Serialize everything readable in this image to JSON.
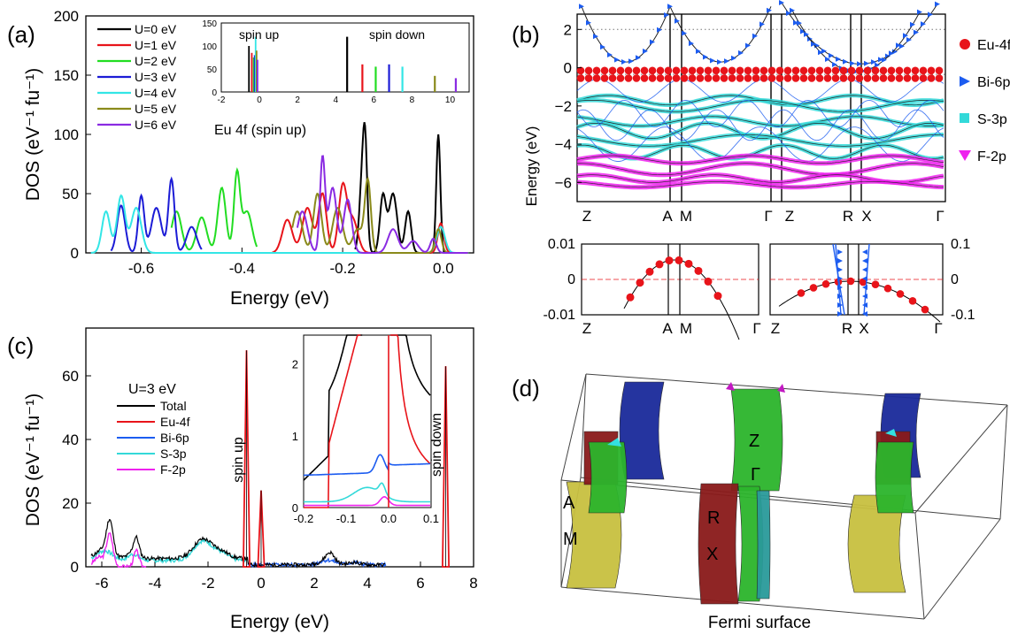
{
  "panel_labels": {
    "a": "(a)",
    "b": "(b)",
    "c": "(c)",
    "d": "(d)"
  },
  "colors": {
    "u0": "#000000",
    "u1": "#e8141a",
    "u2": "#22dd22",
    "u3": "#1c1cd6",
    "u4": "#33e6e6",
    "u5": "#8a8a1a",
    "u6": "#8a2be2",
    "eu": "#e8141a",
    "bi": "#1c5cf0",
    "s": "#33d9d9",
    "f": "#ee22ee"
  },
  "chart_data": [
    {
      "id": "a",
      "type": "line",
      "title": "",
      "xlabel": "Energy (eV)",
      "ylabel": "DOS (eV⁻¹ fu⁻¹)",
      "xlim": [
        -0.71,
        0.06
      ],
      "ylim": [
        0,
        200
      ],
      "xticks": [
        "-0.6",
        "-0.4",
        "-0.2",
        "0.0"
      ],
      "yticks": [
        "0",
        "50",
        "100",
        "150",
        "200"
      ],
      "annotation": "Eu 4f (spin up)",
      "legend": [
        "U=0 eV",
        "U=1 eV",
        "U=2 eV",
        "U=3 eV",
        "U=4 eV",
        "U=5 eV",
        "U=6 eV"
      ],
      "series": [
        {
          "name": "U=0 eV",
          "peaks": [
            [
              -0.16,
              70,
              0.006
            ],
            [
              -0.155,
              55,
              0.004
            ],
            [
              -0.12,
              48,
              0.006
            ],
            [
              -0.1,
              50,
              0.008
            ],
            [
              -0.07,
              35,
              0.006
            ],
            [
              -0.01,
              100,
              0.004
            ]
          ],
          "range": [
            -0.175,
            0.05
          ]
        },
        {
          "name": "U=1 eV",
          "peaks": [
            [
              -0.31,
              28,
              0.01
            ],
            [
              -0.27,
              38,
              0.01
            ],
            [
              -0.24,
              50,
              0.008
            ],
            [
              -0.2,
              55,
              0.008
            ],
            [
              -0.18,
              28,
              0.01
            ],
            [
              -0.005,
              25,
              0.006
            ]
          ],
          "range": [
            -0.34,
            0.05
          ]
        },
        {
          "name": "U=2 eV",
          "peaks": [
            [
              -0.53,
              35,
              0.01
            ],
            [
              -0.48,
              30,
              0.01
            ],
            [
              -0.44,
              55,
              0.008
            ],
            [
              -0.41,
              65,
              0.006
            ],
            [
              -0.39,
              35,
              0.01
            ]
          ],
          "range": [
            -0.54,
            -0.37
          ]
        },
        {
          "name": "U=3 eV",
          "peaks": [
            [
              -0.64,
              40,
              0.008
            ],
            [
              -0.6,
              48,
              0.006
            ],
            [
              -0.57,
              38,
              0.01
            ],
            [
              -0.54,
              62,
              0.006
            ],
            [
              -0.5,
              22,
              0.01
            ]
          ],
          "range": [
            -0.66,
            -0.48
          ]
        },
        {
          "name": "U=4 eV",
          "peaks": [
            [
              -0.67,
              35,
              0.008
            ],
            [
              -0.64,
              48,
              0.008
            ],
            [
              -0.61,
              38,
              0.01
            ],
            [
              -0.005,
              22,
              0.008
            ]
          ],
          "range": [
            -0.7,
            0.05
          ]
        },
        {
          "name": "U=5 eV",
          "peaks": [
            [
              -0.29,
              35,
              0.01
            ],
            [
              -0.25,
              50,
              0.008
            ],
            [
              -0.21,
              38,
              0.01
            ],
            [
              -0.17,
              20,
              0.01
            ],
            [
              -0.15,
              60,
              0.006
            ],
            [
              -0.01,
              20,
              0.006
            ]
          ],
          "range": [
            -0.3,
            0.05
          ]
        },
        {
          "name": "U=6 eV",
          "peaks": [
            [
              -0.28,
              35,
              0.01
            ],
            [
              -0.24,
              80,
              0.005
            ],
            [
              -0.22,
              55,
              0.008
            ],
            [
              -0.19,
              45,
              0.008
            ],
            [
              -0.1,
              20,
              0.01
            ],
            [
              -0.06,
              10,
              0.01
            ],
            [
              -0.02,
              12,
              0.006
            ]
          ],
          "range": [
            -0.29,
            0.05
          ]
        }
      ],
      "inset": {
        "xlim": [
          -2,
          11
        ],
        "ylim": [
          0,
          150
        ],
        "xticks": [
          "-2",
          "0",
          "2",
          "4",
          "6",
          "8",
          "10"
        ],
        "yticks": [
          "0",
          "50",
          "100",
          "150"
        ],
        "labels": [
          "spin up",
          "spin down"
        ],
        "spin_up_x": [
          -0.55,
          -0.4,
          -0.3,
          -0.25,
          -0.2,
          -0.15,
          -0.1
        ],
        "spin_down_x": [
          4.6,
          5.4,
          6.1,
          6.8,
          7.5,
          9.2,
          10.3
        ],
        "spin_up_h": [
          100,
          85,
          75,
          80,
          120,
          90,
          70
        ],
        "spin_down_h": [
          120,
          60,
          55,
          60,
          55,
          35,
          30
        ]
      }
    },
    {
      "id": "b",
      "type": "scatter",
      "title": "",
      "ylabel": "Energy (eV)",
      "ylim": [
        -7,
        2.8
      ],
      "yticks": [
        "2",
        "0",
        "−2",
        "−4",
        "−6"
      ],
      "kpoints_top": [
        "Z",
        "A",
        "M",
        "Γ",
        "Z",
        "R",
        "X",
        "Γ"
      ],
      "legend": [
        "Eu-4f",
        "Bi-6p",
        "S-3p",
        "F-2p"
      ],
      "zoom_left": {
        "ylim": [
          -0.01,
          0.01
        ],
        "yticks": [
          "0.01",
          "0",
          "-0.01"
        ],
        "kpoints": [
          "Z",
          "A",
          "M",
          "Γ"
        ]
      },
      "zoom_right": {
        "ylim": [
          -0.1,
          0.1
        ],
        "yticks": [
          "0.1",
          "0",
          "-0.1"
        ],
        "kpoints": [
          "Z",
          "R",
          "X",
          "Γ"
        ]
      }
    },
    {
      "id": "c",
      "type": "line",
      "title": "",
      "xlabel": "Energy (eV)",
      "ylabel": "DOS (eV⁻¹ fu⁻¹)",
      "xlim": [
        -6.6,
        8
      ],
      "ylim": [
        0,
        75
      ],
      "xticks": [
        "-6",
        "-4",
        "-2",
        "0",
        "2",
        "4",
        "6",
        "8"
      ],
      "yticks": [
        "0",
        "20",
        "40",
        "60"
      ],
      "annotation": "U=3 eV",
      "spin_labels": [
        "spin up",
        "spin down"
      ],
      "legend": [
        "Total",
        "Eu-4f",
        "Bi-6p",
        "S-3p",
        "F-2p"
      ],
      "inset": {
        "xlim": [
          -0.2,
          0.1
        ],
        "ylim": [
          0,
          2.4
        ],
        "xticks": [
          "-0.2",
          "-0.1",
          "0.0",
          "0.1"
        ],
        "yticks": [
          "0",
          "1",
          "2"
        ]
      }
    },
    {
      "id": "d",
      "type": "other",
      "caption": "Fermi surface",
      "labels": [
        "Z",
        "Γ",
        "A",
        "R",
        "X",
        "M"
      ]
    }
  ]
}
